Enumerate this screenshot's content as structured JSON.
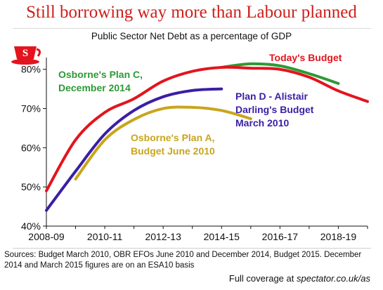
{
  "headline": "Still borrowing way more than Labour planned",
  "footer": {
    "sources": "Sources: Budget March 2010, OBR EFOs June 2010 and December 2014, Budget 2015. December 2014 and March 2015 figures are on an ESA10 basis",
    "coverage_prefix": "Full coverage at ",
    "coverage_site": "spectator.co.uk/as"
  },
  "logo_icon": "teacup-icon",
  "colors": {
    "headline": "#cc1f1a",
    "today": "#e3141d",
    "plan_c": "#2c9a35",
    "plan_d": "#3a1fa3",
    "plan_a": "#c8a51c",
    "logo": "#e3141d"
  },
  "chart_data": {
    "type": "line",
    "title": "Public Sector Net Debt as a percentage of GDP",
    "x": [
      "2008-09",
      "2009-10",
      "2010-11",
      "2011-12",
      "2012-13",
      "2013-14",
      "2014-15",
      "2015-16",
      "2016-17",
      "2017-18",
      "2018-19",
      "2019-20"
    ],
    "xticks": [
      "2008-09",
      "2010-11",
      "2012-13",
      "2014-15",
      "2016-17",
      "2018-19"
    ],
    "yticks": [
      "40%",
      "50%",
      "60%",
      "70%",
      "80%"
    ],
    "ylim": [
      40,
      83
    ],
    "grid": false,
    "series": [
      {
        "name": "Today's Budget",
        "color_key": "today",
        "values": [
          49.0,
          62.0,
          69.0,
          72.5,
          77.0,
          79.5,
          80.5,
          80.3,
          80.0,
          78.0,
          74.5,
          71.8
        ]
      },
      {
        "name": "Osborne's Plan C, December 2014",
        "color_key": "plan_c",
        "values": [
          null,
          null,
          null,
          null,
          null,
          null,
          80.5,
          81.4,
          80.9,
          78.9,
          76.4,
          null
        ]
      },
      {
        "name": "Plan D - Alistair Darling's Budget March 2010",
        "color_key": "plan_d",
        "values": [
          44.0,
          54.0,
          63.5,
          69.5,
          73.0,
          74.6,
          75.0,
          null,
          null,
          null,
          null,
          null
        ]
      },
      {
        "name": "Osborne's Plan A, Budget June 2010",
        "color_key": "plan_a",
        "values": [
          null,
          52.0,
          62.0,
          67.2,
          70.0,
          70.3,
          69.5,
          67.4,
          null,
          null,
          null,
          null
        ]
      }
    ],
    "annotations": [
      {
        "text": "Today's Budget",
        "color_key": "today"
      },
      {
        "text": "Osborne's Plan C,",
        "color_key": "plan_c"
      },
      {
        "text": "December 2014",
        "color_key": "plan_c"
      },
      {
        "text": "Plan D - Alistair",
        "color_key": "plan_d"
      },
      {
        "text": "Darling's Budget",
        "color_key": "plan_d"
      },
      {
        "text": "March 2010",
        "color_key": "plan_d"
      },
      {
        "text": "Osborne's Plan A,",
        "color_key": "plan_a"
      },
      {
        "text": "Budget June 2010",
        "color_key": "plan_a"
      }
    ]
  }
}
